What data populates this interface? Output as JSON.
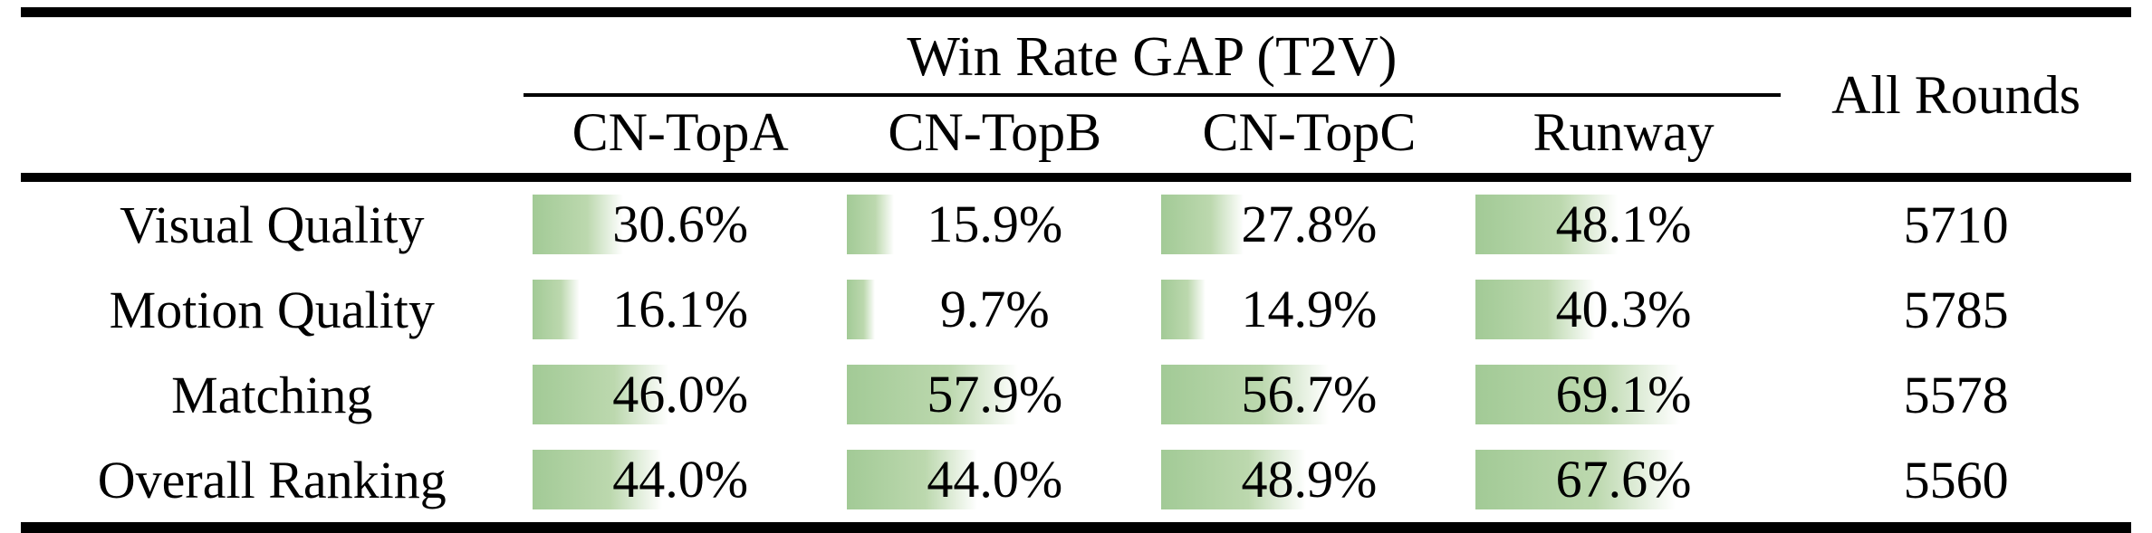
{
  "table": {
    "group_header": "Win Rate GAP (T2V)",
    "all_rounds_header": "All Rounds",
    "columns": [
      "CN-TopA",
      "CN-TopB",
      "CN-TopC",
      "Runway"
    ],
    "rows": [
      {
        "label": "Visual Quality",
        "values": [
          "30.6%",
          "15.9%",
          "27.8%",
          "48.1%"
        ],
        "percents": [
          30.6,
          15.9,
          27.8,
          48.1
        ],
        "all_rounds": "5710"
      },
      {
        "label": "Motion Quality",
        "values": [
          "16.1%",
          "9.7%",
          "14.9%",
          "40.3%"
        ],
        "percents": [
          16.1,
          9.7,
          14.9,
          40.3
        ],
        "all_rounds": "5785"
      },
      {
        "label": "Matching",
        "values": [
          "46.0%",
          "57.9%",
          "56.7%",
          "69.1%"
        ],
        "percents": [
          46.0,
          57.9,
          56.7,
          69.1
        ],
        "all_rounds": "5578"
      },
      {
        "label": "Overall Ranking",
        "values": [
          "44.0%",
          "44.0%",
          "48.9%",
          "67.6%"
        ],
        "percents": [
          44.0,
          44.0,
          48.9,
          67.6
        ],
        "all_rounds": "5560"
      }
    ],
    "colors": {
      "bar_green": "#a2ca96",
      "bar_green_mid": "#bcd8ae",
      "rule_black": "#000000"
    }
  },
  "chart_data": {
    "type": "table",
    "title": "Win Rate GAP (T2V)",
    "categories": [
      "Visual Quality",
      "Motion Quality",
      "Matching",
      "Overall Ranking"
    ],
    "series": [
      {
        "name": "CN-TopA",
        "values": [
          30.6,
          16.1,
          46.0,
          44.0
        ]
      },
      {
        "name": "CN-TopB",
        "values": [
          15.9,
          9.7,
          57.9,
          44.0
        ]
      },
      {
        "name": "CN-TopC",
        "values": [
          27.8,
          14.9,
          56.7,
          48.9
        ]
      },
      {
        "name": "Runway",
        "values": [
          48.1,
          40.3,
          69.1,
          67.6
        ]
      }
    ],
    "extra_column": {
      "name": "All Rounds",
      "values": [
        5710,
        5785,
        5578,
        5560
      ]
    },
    "unit": "%",
    "bar_range": [
      0,
      100
    ],
    "legend_position": "none",
    "grid": false
  }
}
